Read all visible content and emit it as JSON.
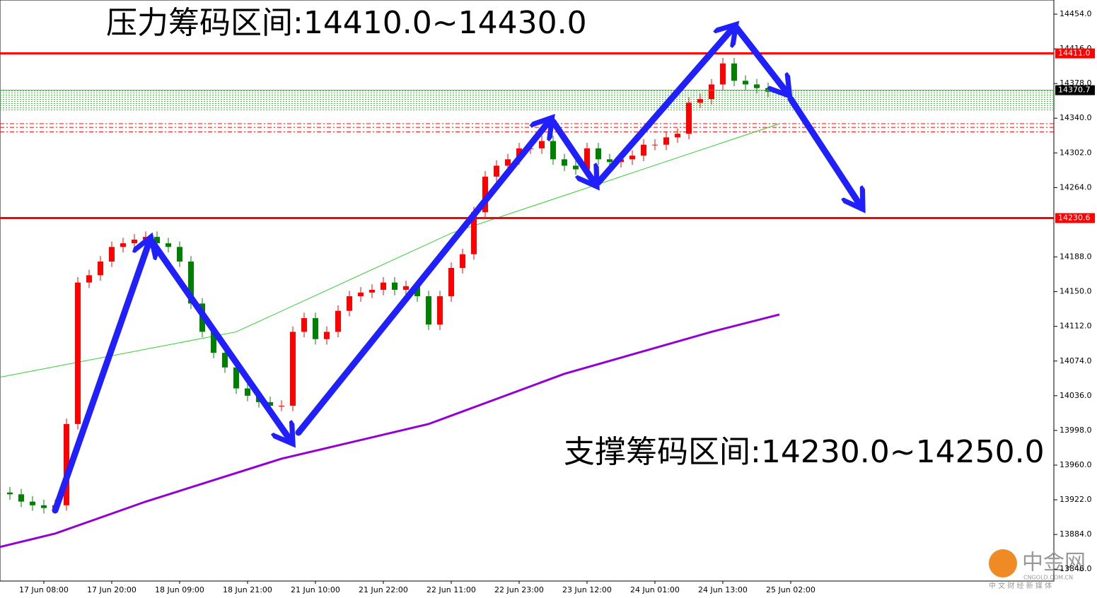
{
  "chart_data": {
    "type": "candlestick",
    "categories": [
      null,
      null,
      null,
      "17 Jun 08:00",
      null,
      null,
      null,
      null,
      null,
      "17 Jun 20:00",
      null,
      null,
      null,
      null,
      null,
      "18 Jun 09:00",
      null,
      null,
      null,
      null,
      null,
      "18 Jun 21:00",
      null,
      null,
      null,
      null,
      null,
      "21 Jun 10:00",
      null,
      null,
      null,
      null,
      null,
      "21 Jun 22:00",
      null,
      null,
      null,
      null,
      null,
      "22 Jun 11:00",
      null,
      null,
      null,
      null,
      null,
      "22 Jun 23:00",
      null,
      null,
      null,
      null,
      null,
      "23 Jun 12:00",
      null,
      null,
      null,
      null,
      null,
      "24 Jun 01:00",
      null,
      null,
      null,
      null,
      null,
      "24 Jun 13:00",
      null,
      null,
      null,
      null,
      null,
      "25 Jun 02:00"
    ],
    "open": [
      13930,
      13928,
      13920,
      13916,
      13913,
      13916,
      14005,
      14160,
      14168,
      14183,
      14199,
      14203,
      14207,
      14210,
      14203,
      14199,
      14183,
      14137,
      14106,
      14083,
      14067,
      14044,
      14036,
      14029,
      14025,
      14025,
      14106,
      14121,
      14098,
      14106,
      14129,
      14145,
      14149,
      14152,
      14160,
      14152,
      14156,
      14145,
      14114,
      14145,
      14176,
      14191,
      14237,
      14276,
      14288,
      14295,
      14307,
      14307,
      14315,
      14295,
      14288,
      14284,
      14307,
      14295,
      14292,
      14295,
      14299,
      14311,
      14311,
      14319,
      14323,
      14357,
      14361,
      14377,
      14400,
      14381,
      14377,
      14373,
      null,
      null
    ],
    "high": [
      13936,
      13934,
      13926,
      13922,
      13922,
      14011,
      14166,
      14174,
      14189,
      14205,
      14209,
      14213,
      14216,
      14216,
      14209,
      14205,
      14189,
      14143,
      14112,
      14089,
      14073,
      14050,
      14042,
      14035,
      14031,
      14112,
      14127,
      14127,
      14112,
      14135,
      14151,
      14155,
      14158,
      14166,
      14166,
      14162,
      14162,
      14151,
      14151,
      14182,
      14197,
      14243,
      14282,
      14294,
      14301,
      14313,
      14313,
      14321,
      14321,
      14301,
      14294,
      14313,
      14313,
      14301,
      14301,
      14305,
      14317,
      14317,
      14325,
      14329,
      14363,
      14367,
      14383,
      14406,
      14406,
      14387,
      14383,
      14379,
      null,
      null
    ],
    "low": [
      13922,
      13914,
      13910,
      13907,
      13907,
      13910,
      13999,
      14154,
      14162,
      14177,
      14193,
      14197,
      14201,
      14197,
      14193,
      14177,
      14131,
      14100,
      14077,
      14061,
      14038,
      14030,
      14023,
      14019,
      14019,
      14019,
      14100,
      14092,
      14092,
      14100,
      14123,
      14139,
      14143,
      14146,
      14146,
      14146,
      14139,
      14108,
      14108,
      14139,
      14170,
      14185,
      14231,
      14270,
      14282,
      14289,
      14301,
      14301,
      14289,
      14282,
      14278,
      14278,
      14289,
      14286,
      14286,
      14289,
      14293,
      14305,
      14305,
      14313,
      14317,
      14351,
      14355,
      14371,
      14375,
      14371,
      14367,
      14363,
      null,
      null
    ],
    "close": [
      13928,
      13920,
      13916,
      13913,
      13916,
      14005,
      14160,
      14168,
      14183,
      14199,
      14203,
      14207,
      14210,
      14203,
      14199,
      14183,
      14137,
      14106,
      14083,
      14067,
      14044,
      14036,
      14029,
      14025,
      14025,
      14106,
      14121,
      14098,
      14106,
      14129,
      14145,
      14149,
      14152,
      14160,
      14152,
      14156,
      14145,
      14114,
      14145,
      14176,
      14191,
      14237,
      14276,
      14288,
      14295,
      14307,
      14307,
      14315,
      14295,
      14288,
      14284,
      14307,
      14295,
      14292,
      14295,
      14299,
      14311,
      14311,
      14319,
      14323,
      14357,
      14361,
      14377,
      14400,
      14381,
      14377,
      14373,
      14369,
      null,
      null
    ],
    "up_color": "#ff0000",
    "down_color": "#008000",
    "overlays": [
      {
        "color": "#9400d3",
        "x": [
          -1,
          4,
          12,
          24,
          37,
          49,
          62,
          68
        ],
        "values": [
          13870,
          13885,
          13920,
          13967,
          14005,
          14060,
          14106,
          14125
        ]
      },
      {
        "color": "#33cc33",
        "x": [
          -1,
          20,
          39,
          68
        ],
        "values": [
          14056,
          14106,
          14214,
          14334
        ]
      }
    ],
    "ylim": [
      13833,
      14469.5
    ],
    "yticks": [
      {
        "value": 14454,
        "label": "14454.0"
      },
      {
        "value": 14416,
        "label": "14416.0"
      },
      {
        "value": 14378,
        "label": "14378.0"
      },
      {
        "value": 14340,
        "label": "14340.0"
      },
      {
        "value": 14302,
        "label": "14302.0"
      },
      {
        "value": 14264,
        "label": "14264.0"
      },
      {
        "value": 14188,
        "label": "14188.0"
      },
      {
        "value": 14150,
        "label": "14150.0"
      },
      {
        "value": 14112,
        "label": "14112.0"
      },
      {
        "value": 14074,
        "label": "14074.0"
      },
      {
        "value": 14036,
        "label": "14036.0"
      },
      {
        "value": 13998,
        "label": "13998.0"
      },
      {
        "value": 13960,
        "label": "13960.0"
      },
      {
        "value": 13922,
        "label": "13922.0"
      },
      {
        "value": 13884,
        "label": "13884.0"
      },
      {
        "value": 13846,
        "label": "13846.0"
      }
    ],
    "levels": [
      {
        "value": 14411.0,
        "label": "14411.0",
        "color": "#ff0000"
      },
      {
        "value": 14230.6,
        "label": "14230.6",
        "color": "#ff0000"
      }
    ],
    "price_tag": {
      "value": 14370.7,
      "label": "14370.7"
    },
    "dashed_levels": [
      14334,
      14330,
      14325
    ],
    "zone": [
      14349,
      14370
    ],
    "annotations": [
      "压力筹码区间:14410.0~14430.0",
      "支撑筹码区间:14230.0~14250.0"
    ],
    "watermark": {
      "name": "中金网",
      "site": "CNGOLD.COM.CN",
      "slogan": "中 文 财 经 新 媒 体"
    }
  }
}
